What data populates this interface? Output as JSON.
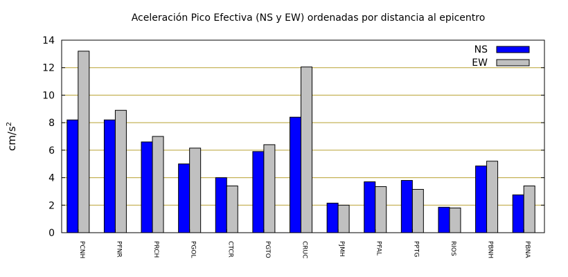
{
  "chart_data": {
    "type": "bar",
    "title": "Aceleración Pico Efectiva (NS y EW) ordenadas por distancia al epicentro",
    "ylabel": "cm/s",
    "ylabel_sup": "2",
    "xlabel": "",
    "ylim": [
      0,
      14
    ],
    "yticks": [
      0,
      2,
      4,
      6,
      8,
      10,
      12,
      14
    ],
    "grid": true,
    "legend_position": "top-right",
    "categories": [
      "PCNH",
      "PFNR",
      "PRCH",
      "PGOL",
      "CTCR",
      "PGTO",
      "CRUC",
      "PJMH",
      "PFAL",
      "PPTG",
      "RIOS",
      "PBNH",
      "PBNA"
    ],
    "series": [
      {
        "name": "NS",
        "color": "#0000ff",
        "values": [
          8.2,
          8.2,
          6.6,
          5.0,
          4.0,
          5.9,
          8.4,
          2.15,
          3.7,
          3.8,
          1.85,
          4.85,
          2.75
        ]
      },
      {
        "name": "EW",
        "color": "#c0c0c0",
        "values": [
          13.2,
          8.9,
          7.0,
          6.15,
          3.4,
          6.4,
          12.05,
          2.0,
          3.35,
          3.15,
          1.8,
          5.2,
          3.4
        ]
      }
    ],
    "grid_color": "#b8a030"
  }
}
